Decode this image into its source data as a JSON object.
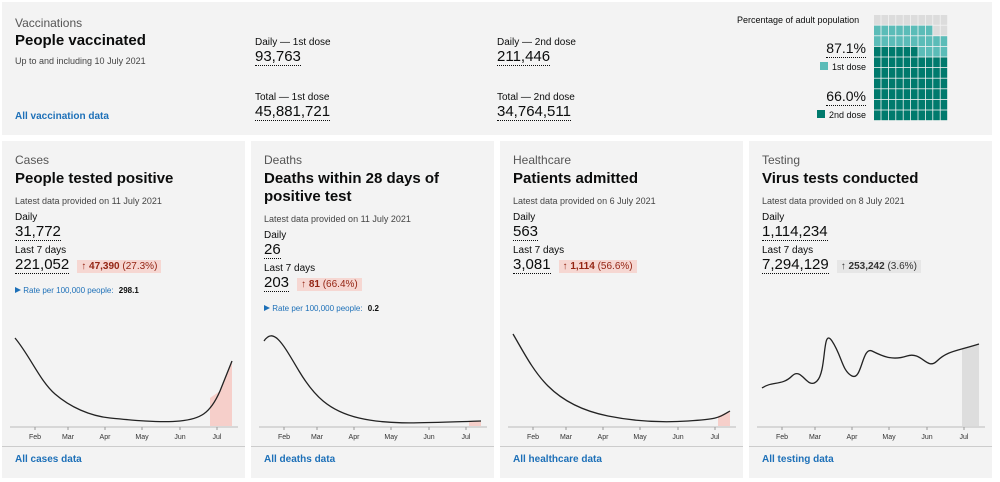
{
  "vaccinations": {
    "category": "Vaccinations",
    "title": "People vaccinated",
    "note": "Up to and including 10 July 2021",
    "link": "All vaccination data",
    "metrics": [
      {
        "label": "Daily — 1st dose",
        "value": "93,763"
      },
      {
        "label": "Daily — 2nd dose",
        "value": "211,446"
      },
      {
        "label": "Total — 1st dose",
        "value": "45,881,721"
      },
      {
        "label": "Total — 2nd dose",
        "value": "34,764,511"
      }
    ],
    "waffle": {
      "title": "Percentage of adult population",
      "doses": [
        {
          "value": 87.1,
          "label": "87.1%",
          "name": "1st dose",
          "color": "#5bbcb8"
        },
        {
          "value": 66.0,
          "label": "66.0%",
          "name": "2nd dose",
          "color": "#007a6d"
        }
      ]
    }
  },
  "cards": [
    {
      "category": "Cases",
      "title": "People tested positive",
      "note": "Latest data provided on 11 July 2021",
      "daily_label": "Daily",
      "daily": "31,772",
      "week_label": "Last 7 days",
      "week": "221,052",
      "arrow": "↑",
      "change": "47,390",
      "change_pct": "(27.3%)",
      "change_color": "#f6d7d2",
      "text_color": "#942514",
      "rate_label": "Rate per 100,000 people:",
      "rate": "298.1",
      "months": [
        "Feb",
        "Mar",
        "Apr",
        "May",
        "Jun",
        "Jul"
      ],
      "link": "All cases data"
    },
    {
      "category": "Deaths",
      "title": "Deaths within 28 days of positive test",
      "note": "Latest data provided on 11 July 2021",
      "daily_label": "Daily",
      "daily": "26",
      "week_label": "Last 7 days",
      "week": "203",
      "arrow": "↑",
      "change": "81",
      "change_pct": "(66.4%)",
      "change_color": "#f6d7d2",
      "text_color": "#942514",
      "rate_label": "Rate per 100,000 people:",
      "rate": "0.2",
      "months": [
        "Feb",
        "Mar",
        "Apr",
        "May",
        "Jun",
        "Jul"
      ],
      "link": "All deaths data"
    },
    {
      "category": "Healthcare",
      "title": "Patients admitted",
      "note": "Latest data provided on 6 July 2021",
      "daily_label": "Daily",
      "daily": "563",
      "week_label": "Last 7 days",
      "week": "3,081",
      "arrow": "↑",
      "change": "1,114",
      "change_pct": "(56.6%)",
      "change_color": "#f6d7d2",
      "text_color": "#942514",
      "months": [
        "Feb",
        "Mar",
        "Apr",
        "May",
        "Jun",
        "Jul"
      ],
      "link": "All healthcare data"
    },
    {
      "category": "Testing",
      "title": "Virus tests conducted",
      "note": "Latest data provided on 8 July 2021",
      "daily_label": "Daily",
      "daily": "1,114,234",
      "week_label": "Last 7 days",
      "week": "7,294,129",
      "arrow": "↑",
      "change": "253,242",
      "change_pct": "(3.6%)",
      "change_color": "#e6e6e6",
      "text_color": "#333333",
      "months": [
        "Feb",
        "Mar",
        "Apr",
        "May",
        "Jun",
        "Jul"
      ],
      "link": "All testing data"
    }
  ]
}
